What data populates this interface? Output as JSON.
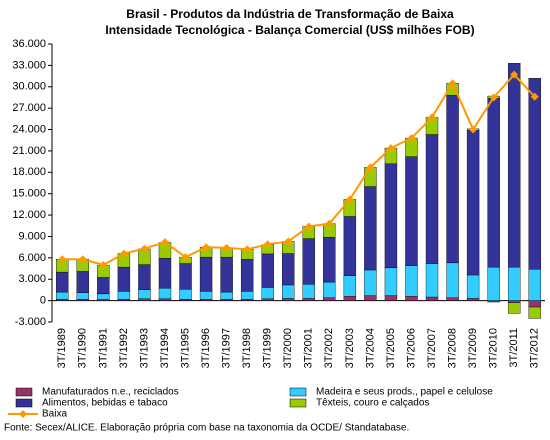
{
  "chart_data": {
    "type": "bar_line",
    "title": "Brasil - Produtos da Indústria de Transformação de Baixa",
    "subtitle": "Intensidade Tecnológica - Balança Comercial (US$ milhões FOB)",
    "source": "Fonte: Secex/ALICE. Elaboração própria com base na taxonomia da OCDE/ Standatabase.",
    "categories": [
      "3T/1989",
      "3T/1990",
      "3T/1991",
      "3T/1992",
      "3T/1993",
      "3T/1994",
      "3T/1995",
      "3T/1996",
      "3T/1997",
      "3T/1998",
      "3T/1999",
      "3T/2000",
      "3T/2001",
      "3T/2002",
      "3T/2003",
      "3T/2004",
      "3T/2005",
      "3T/2006",
      "3T/2007",
      "3T/2008",
      "3T/2009",
      "3T/2010",
      "3T/2011",
      "3T/2012"
    ],
    "series": [
      {
        "name": "Manufaturados n.e., reciclados",
        "color": "#993366",
        "type": "bar",
        "values": [
          200,
          200,
          150,
          200,
          250,
          250,
          200,
          200,
          200,
          200,
          250,
          300,
          300,
          400,
          600,
          700,
          700,
          600,
          500,
          400,
          300,
          -200,
          -300,
          -900
        ]
      },
      {
        "name": "Madeira e seus prods., papel e celulose",
        "color": "#33ccff",
        "type": "bar",
        "values": [
          1000,
          900,
          800,
          1100,
          1300,
          1500,
          1400,
          1100,
          1000,
          1100,
          1600,
          1900,
          2000,
          2200,
          2900,
          3600,
          3900,
          4300,
          4700,
          4900,
          3300,
          4700,
          4700,
          4400
        ]
      },
      {
        "name": "Alimentos, bebidas e tabaco",
        "color": "#333399",
        "type": "bar",
        "values": [
          2800,
          3000,
          2300,
          3400,
          3500,
          4200,
          3600,
          4800,
          4900,
          4500,
          4700,
          4400,
          6400,
          6300,
          8300,
          11700,
          14600,
          15300,
          18100,
          23500,
          20300,
          23700,
          28600,
          26800
        ]
      },
      {
        "name": "Têxteis, couro e calçados",
        "color": "#99cc00",
        "type": "bar",
        "values": [
          1800,
          1700,
          1700,
          1900,
          2200,
          2200,
          900,
          1400,
          1300,
          1400,
          1300,
          1700,
          1700,
          1900,
          2400,
          2700,
          2200,
          2600,
          2400,
          1700,
          200,
          300,
          -1500,
          -1600
        ]
      },
      {
        "name": "Baixa",
        "color": "#ff9900",
        "type": "line",
        "values": [
          5800,
          5800,
          5000,
          6600,
          7300,
          8200,
          6100,
          7500,
          7400,
          7200,
          7900,
          8300,
          10400,
          10800,
          14200,
          18700,
          21400,
          22800,
          25700,
          30500,
          24000,
          28500,
          31700,
          28600
        ]
      }
    ],
    "ylim": [
      -3000,
      36000
    ],
    "yticks": [
      {
        "value": -3000,
        "label": "-3.000"
      },
      0,
      {
        "value": 3000,
        "label": "3.000"
      },
      {
        "value": 6000,
        "label": "6.000"
      },
      {
        "value": 9000,
        "label": "9.000"
      },
      {
        "value": 12000,
        "label": "12.000"
      },
      {
        "value": 15000,
        "label": "15.000"
      },
      {
        "value": 18000,
        "label": "18.000"
      },
      {
        "value": 21000,
        "label": "21.000"
      },
      {
        "value": 24000,
        "label": "24.000"
      },
      {
        "value": 27000,
        "label": "27.000"
      },
      {
        "value": 30000,
        "label": "30.000"
      },
      {
        "value": 33000,
        "label": "33.000"
      },
      {
        "value": 36000,
        "label": "36.000"
      }
    ],
    "grid": false
  }
}
